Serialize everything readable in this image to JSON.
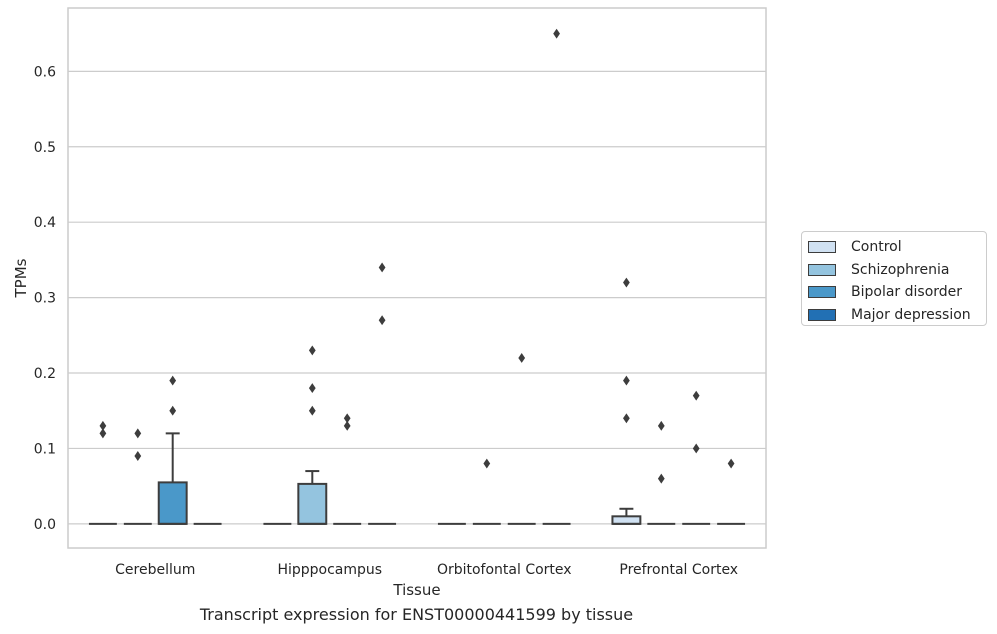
{
  "chart_data": {
    "type": "box",
    "caption": "Transcript expression for ENST00000441599 by tissue",
    "xlabel": "Tissue",
    "ylabel": "TPMs",
    "ylim": [
      -0.032,
      0.684
    ],
    "yticks": [
      "0.0",
      "0.1",
      "0.2",
      "0.3",
      "0.4",
      "0.5",
      "0.6"
    ],
    "ytick_values": [
      0.0,
      0.1,
      0.2,
      0.3,
      0.4,
      0.5,
      0.6
    ],
    "grid": true,
    "legend_placement": "right",
    "categories": [
      "Cerebellum",
      "Hipppocampus",
      "Orbitofontal Cortex",
      "Prefrontal Cortex"
    ],
    "series": [
      {
        "name": "Control",
        "color": "#d0e1f2",
        "boxes": [
          {
            "q1": 0,
            "median": 0,
            "q3": 0,
            "whisker_low": 0,
            "whisker_high": 0,
            "outliers": [
              0.12,
              0.13
            ]
          },
          {
            "q1": 0,
            "median": 0,
            "q3": 0,
            "whisker_low": 0,
            "whisker_high": 0,
            "outliers": []
          },
          {
            "q1": 0,
            "median": 0,
            "q3": 0,
            "whisker_low": 0,
            "whisker_high": 0,
            "outliers": []
          },
          {
            "q1": 0,
            "median": 0,
            "q3": 0.01,
            "whisker_low": 0,
            "whisker_high": 0.02,
            "outliers": [
              0.14,
              0.19,
              0.32
            ]
          }
        ]
      },
      {
        "name": "Schizophrenia",
        "color": "#94c4df",
        "boxes": [
          {
            "q1": 0,
            "median": 0,
            "q3": 0,
            "whisker_low": 0,
            "whisker_high": 0,
            "outliers": [
              0.09,
              0.12
            ]
          },
          {
            "q1": 0,
            "median": 0,
            "q3": 0.053,
            "whisker_low": 0,
            "whisker_high": 0.07,
            "outliers": [
              0.15,
              0.18,
              0.23
            ]
          },
          {
            "q1": 0,
            "median": 0,
            "q3": 0,
            "whisker_low": 0,
            "whisker_high": 0,
            "outliers": [
              0.08
            ]
          },
          {
            "q1": 0,
            "median": 0,
            "q3": 0,
            "whisker_low": 0,
            "whisker_high": 0,
            "outliers": [
              0.06,
              0.13
            ]
          }
        ]
      },
      {
        "name": "Bipolar disorder",
        "color": "#4a98c9",
        "boxes": [
          {
            "q1": 0,
            "median": 0,
            "q3": 0.055,
            "whisker_low": 0,
            "whisker_high": 0.12,
            "outliers": [
              0.15,
              0.19
            ]
          },
          {
            "q1": 0,
            "median": 0,
            "q3": 0,
            "whisker_low": 0,
            "whisker_high": 0,
            "outliers": [
              0.13,
              0.14
            ]
          },
          {
            "q1": 0,
            "median": 0,
            "q3": 0,
            "whisker_low": 0,
            "whisker_high": 0,
            "outliers": [
              0.22
            ]
          },
          {
            "q1": 0,
            "median": 0,
            "q3": 0,
            "whisker_low": 0,
            "whisker_high": 0,
            "outliers": [
              0.1,
              0.17
            ]
          }
        ]
      },
      {
        "name": "Major depression",
        "color": "#2270b4",
        "boxes": [
          {
            "q1": 0,
            "median": 0,
            "q3": 0,
            "whisker_low": 0,
            "whisker_high": 0,
            "outliers": []
          },
          {
            "q1": 0,
            "median": 0,
            "q3": 0,
            "whisker_low": 0,
            "whisker_high": 0,
            "outliers": [
              0.27,
              0.34
            ]
          },
          {
            "q1": 0,
            "median": 0,
            "q3": 0,
            "whisker_low": 0,
            "whisker_high": 0,
            "outliers": [
              0.65
            ]
          },
          {
            "q1": 0,
            "median": 0,
            "q3": 0,
            "whisker_low": 0,
            "whisker_high": 0,
            "outliers": [
              0.08
            ]
          }
        ]
      }
    ]
  }
}
